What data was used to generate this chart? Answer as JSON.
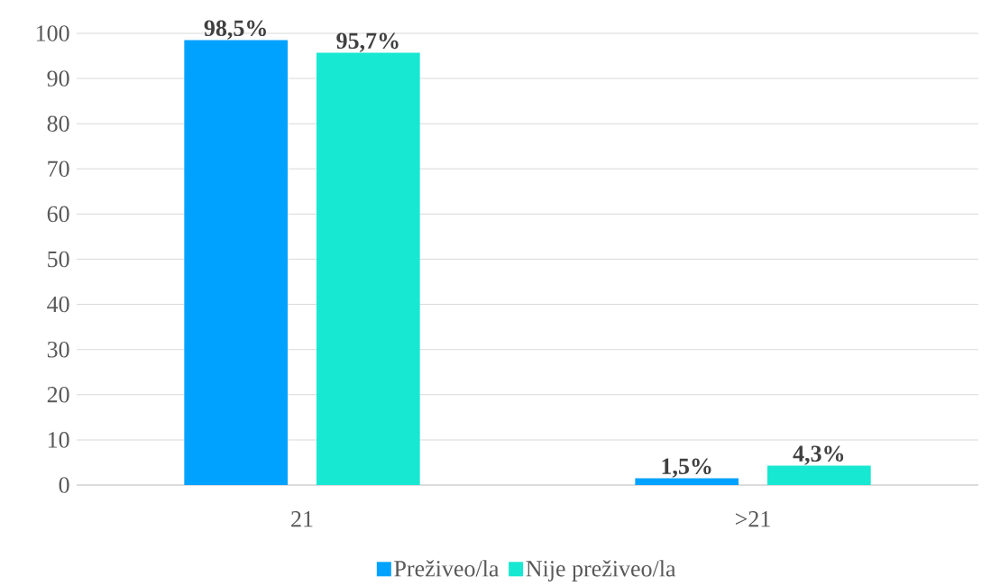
{
  "chart_data": {
    "type": "bar",
    "categories": [
      "21",
      ">21"
    ],
    "series": [
      {
        "name": "Preživeo/la",
        "color": "#00a2ff",
        "values": [
          98.5,
          1.5
        ],
        "value_labels": [
          "98,5%",
          "1,5%"
        ]
      },
      {
        "name": "Nije preživeo/la",
        "color": "#17e8d2",
        "values": [
          95.7,
          4.3
        ],
        "value_labels": [
          "95,7%",
          "4,3%"
        ]
      }
    ],
    "ylim": [
      0,
      100
    ],
    "yticks": [
      0,
      10,
      20,
      30,
      40,
      50,
      60,
      70,
      80,
      90,
      100
    ],
    "grid": "y",
    "legend": "bottom"
  }
}
